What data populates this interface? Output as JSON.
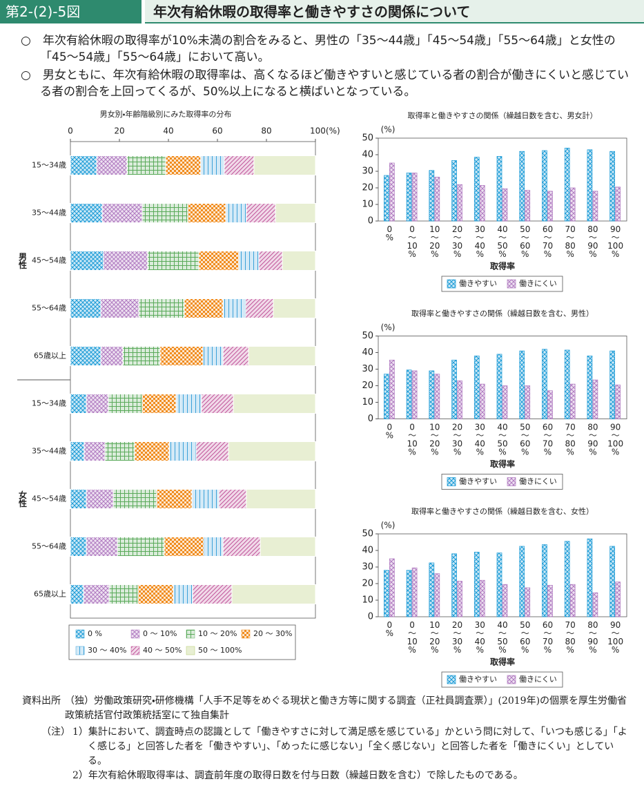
{
  "header": {
    "figure_no": "第2-(2)-5図",
    "title": "年次有給休暇の取得率と働きやすさの関係について"
  },
  "summary": [
    "○　年次有給休暇の取得率が10%未満の割合をみると、男性の「35～44歳」「45～54歳」「55～64歳」と女性の「45～54歳」「55～64歳」において高い。",
    "○　男女ともに、年次有給休暇の取得率は、高くなるほど働きやすいと感じている者の割合が働きにくいと感じている者の割合を上回ってくるが、50%以上になると横ばいとなっている。"
  ],
  "chart_data": [
    {
      "type": "hbar",
      "title": "男女別・年齢階級別にみた取得率の分布",
      "groups": [
        "男性",
        "女性"
      ],
      "categories": [
        "15～34歳",
        "35～44歳",
        "45～54歳",
        "55～64歳",
        "65歳以上",
        "15～34歳",
        "35～44歳",
        "45～54歳",
        "55～64歳",
        "65歳以上"
      ],
      "xlim": [
        0,
        100
      ],
      "xticks": [
        0,
        20,
        40,
        60,
        80,
        {
          "value": 100,
          "label": "100(%)"
        }
      ],
      "series": [
        {
          "name": "0 %",
          "color": "#1a9ad6",
          "values": [
            10.7,
            13.0,
            13.5,
            12.4,
            12.4,
            6.5,
            5.6,
            6.5,
            6.5,
            5.4
          ]
        },
        {
          "name": "0 ～ 10%",
          "color": "#b07ac0",
          "values": [
            12.4,
            16.3,
            18.0,
            15.5,
            9.0,
            9.0,
            8.5,
            11.0,
            12.7,
            10.4
          ]
        },
        {
          "name": "10 ～ 20%",
          "color": "#5aaa5a",
          "values": [
            15.8,
            18.6,
            20.9,
            18.6,
            15.2,
            13.8,
            12.1,
            17.7,
            19.1,
            11.8
          ]
        },
        {
          "name": "20 ～ 30%",
          "color": "#f08c1e",
          "values": [
            14.3,
            15.5,
            16.3,
            15.8,
            17.5,
            13.8,
            14.1,
            14.4,
            16.1,
            14.4
          ]
        },
        {
          "name": "30 ～ 40%",
          "color": "#3aa0d8",
          "values": [
            9.6,
            8.4,
            8.2,
            9.2,
            8.2,
            10.4,
            11.0,
            11.0,
            7.9,
            7.9
          ]
        },
        {
          "name": "40 ～ 50%",
          "color": "#c0559a",
          "values": [
            12.1,
            11.9,
            9.6,
            11.3,
            10.4,
            13.0,
            13.2,
            11.2,
            15.2,
            16.0
          ]
        },
        {
          "name": "50 ～ 100%",
          "color": "#b5cc6e",
          "values": [
            25.1,
            16.3,
            13.5,
            17.2,
            27.3,
            33.5,
            35.5,
            28.2,
            22.5,
            34.1
          ]
        }
      ]
    },
    {
      "type": "bar",
      "title": "取得率と働きやすさの関係（繰越日数を含む、男女計）",
      "ylabel": "(%)",
      "xlabel": "取得率",
      "categories": [
        "0%",
        "0〜10%",
        "10〜20%",
        "20〜30%",
        "30〜40%",
        "40〜50%",
        "50〜60%",
        "60〜70%",
        "70〜80%",
        "80〜90%",
        "90〜100%"
      ],
      "ylim": [
        0,
        50
      ],
      "yticks": [
        0,
        10,
        20,
        30,
        40,
        50
      ],
      "series": [
        {
          "name": "働きやすい",
          "color": "#1a9ad6",
          "values": [
            27.5,
            29,
            30.5,
            36.5,
            38.5,
            39,
            42,
            42.5,
            44,
            43,
            42
          ]
        },
        {
          "name": "働きにくい",
          "color": "#b07ac0",
          "values": [
            35,
            29,
            26.5,
            22,
            21.5,
            19.5,
            18.5,
            18,
            20,
            18,
            20.5
          ]
        }
      ]
    },
    {
      "type": "bar",
      "title": "取得率と働きやすさの関係（繰越日数を含む、男性）",
      "ylabel": "(%)",
      "xlabel": "取得率",
      "categories": [
        "0%",
        "0〜10%",
        "10〜20%",
        "20〜30%",
        "30〜40%",
        "40〜50%",
        "50〜60%",
        "60〜70%",
        "70〜80%",
        "80〜90%",
        "90〜100%"
      ],
      "ylim": [
        0,
        50
      ],
      "yticks": [
        0,
        10,
        20,
        30,
        40,
        50
      ],
      "series": [
        {
          "name": "働きやすい",
          "color": "#1a9ad6",
          "values": [
            27,
            29.5,
            29,
            35.5,
            38,
            39,
            41,
            42,
            41.5,
            38,
            41
          ]
        },
        {
          "name": "働きにくい",
          "color": "#b07ac0",
          "values": [
            35.5,
            29,
            27,
            23,
            21,
            20,
            20,
            17,
            21,
            23.5,
            20.5
          ]
        }
      ]
    },
    {
      "type": "bar",
      "title": "取得率と働きやすさの関係（繰越日数を含む、女性）",
      "ylabel": "(%)",
      "xlabel": "取得率",
      "categories": [
        "0%",
        "0〜10%",
        "10〜20%",
        "20〜30%",
        "30〜40%",
        "40〜50%",
        "50〜60%",
        "60〜70%",
        "70〜80%",
        "80〜90%",
        "90〜100%"
      ],
      "ylim": [
        0,
        50
      ],
      "yticks": [
        0,
        10,
        20,
        30,
        40,
        50
      ],
      "series": [
        {
          "name": "働きやすい",
          "color": "#1a9ad6",
          "values": [
            28,
            28,
            32.5,
            38,
            39,
            38.5,
            42.5,
            43.5,
            45.5,
            47,
            42.5
          ]
        },
        {
          "name": "働きにくい",
          "color": "#b07ac0",
          "values": [
            35,
            29.5,
            26,
            21.5,
            22,
            19.5,
            17.5,
            19,
            19.5,
            14.5,
            21
          ]
        }
      ]
    }
  ],
  "source": {
    "label": "資料出所",
    "text": "（独）労働政策研究・研修機構「人手不足等をめぐる現状と働き方等に関する調査（正社員調査票）」(2019年)の個票を厚生労働省政策統括官付政策統括室にて独自集計"
  },
  "notes": {
    "label": "（注）",
    "items": [
      "1）集計において、調査時点の認識として「働きやすさに対して満足感を感じている」かという問に対して、「いつも感じる」「よく感じる」と回答した者を「働きやすい」、「めったに感じない」「全く感じない」と回答した者を「働きにくい」としている。",
      "2）年次有給休暇取得率は、調査前年度の取得日数を付与日数（繰越日数を含む）で除したものである。"
    ]
  }
}
